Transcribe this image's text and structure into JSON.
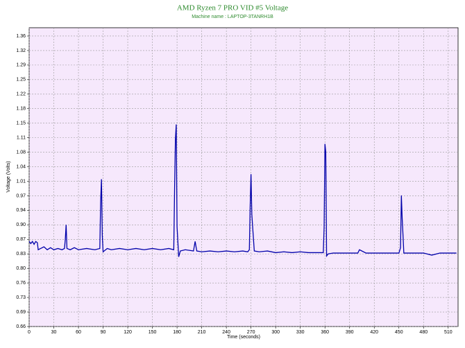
{
  "chart_data": {
    "type": "line",
    "title": "AMD Ryzen 7 PRO VID #5 Voltage",
    "subtitle": "Machine name : LAPTOP-3TANRH1B",
    "x_label": "Time (seconds)",
    "y_label": "Voltage (Volts)",
    "xlim": [
      0,
      522
    ],
    "ylim": [
      0.66,
      1.38
    ],
    "xticks": [
      0,
      30,
      60,
      90,
      120,
      150,
      180,
      210,
      240,
      270,
      300,
      330,
      360,
      390,
      420,
      450,
      480,
      510
    ],
    "yticks": [
      0.66,
      {
        "value": 0.695,
        "label": "0.69"
      },
      0.73,
      {
        "value": 0.765,
        "label": "0.76"
      },
      {
        "value": 0.8,
        "label": "0.80"
      },
      {
        "value": 0.835,
        "label": "0.83"
      },
      0.87,
      {
        "value": 0.905,
        "label": "0.90"
      },
      0.94,
      {
        "value": 0.975,
        "label": "0.97"
      },
      1.01,
      {
        "value": 1.045,
        "label": "1.04"
      },
      1.08,
      {
        "value": 1.115,
        "label": "1.11"
      },
      1.15,
      {
        "value": 1.185,
        "label": "1.18"
      },
      1.22,
      {
        "value": 1.255,
        "label": "1.25"
      },
      1.29,
      {
        "value": 1.325,
        "label": "1.32"
      },
      1.36
    ],
    "grid": true,
    "series": [
      {
        "color": "#0000aa",
        "x": [
          0,
          2,
          4,
          6,
          8,
          10,
          11,
          14,
          18,
          22,
          26,
          30,
          35,
          40,
          43,
          44,
          45,
          46,
          50,
          55,
          60,
          70,
          80,
          86,
          87,
          88,
          89,
          90,
          95,
          100,
          110,
          120,
          130,
          140,
          150,
          160,
          170,
          176,
          177,
          178,
          179,
          180,
          182,
          184,
          190,
          200,
          202,
          204,
          210,
          220,
          230,
          240,
          250,
          260,
          266,
          268,
          269,
          270,
          271,
          272,
          274,
          280,
          290,
          300,
          310,
          320,
          330,
          340,
          350,
          358,
          359,
          360,
          361,
          362,
          364,
          370,
          380,
          400,
          402,
          410,
          420,
          440,
          450,
          452,
          453,
          454,
          455,
          456,
          460,
          480,
          490,
          500,
          520
        ],
        "values": [
          0.865,
          0.86,
          0.865,
          0.858,
          0.865,
          0.862,
          0.845,
          0.848,
          0.852,
          0.845,
          0.85,
          0.845,
          0.848,
          0.845,
          0.848,
          0.87,
          0.905,
          0.848,
          0.845,
          0.85,
          0.845,
          0.848,
          0.845,
          0.848,
          0.96,
          1.015,
          0.88,
          0.84,
          0.848,
          0.845,
          0.848,
          0.845,
          0.848,
          0.845,
          0.848,
          0.845,
          0.848,
          0.845,
          0.99,
          1.11,
          1.147,
          0.9,
          0.828,
          0.842,
          0.845,
          0.842,
          0.865,
          0.842,
          0.84,
          0.842,
          0.84,
          0.842,
          0.84,
          0.842,
          0.84,
          0.845,
          0.95,
          1.027,
          0.93,
          0.9,
          0.842,
          0.84,
          0.842,
          0.838,
          0.84,
          0.838,
          0.84,
          0.838,
          0.838,
          0.838,
          0.9,
          1.1,
          1.08,
          0.83,
          0.835,
          0.837,
          0.837,
          0.837,
          0.845,
          0.837,
          0.837,
          0.837,
          0.837,
          0.85,
          0.976,
          0.92,
          0.88,
          0.837,
          0.837,
          0.837,
          0.832,
          0.837,
          0.837
        ]
      }
    ]
  }
}
